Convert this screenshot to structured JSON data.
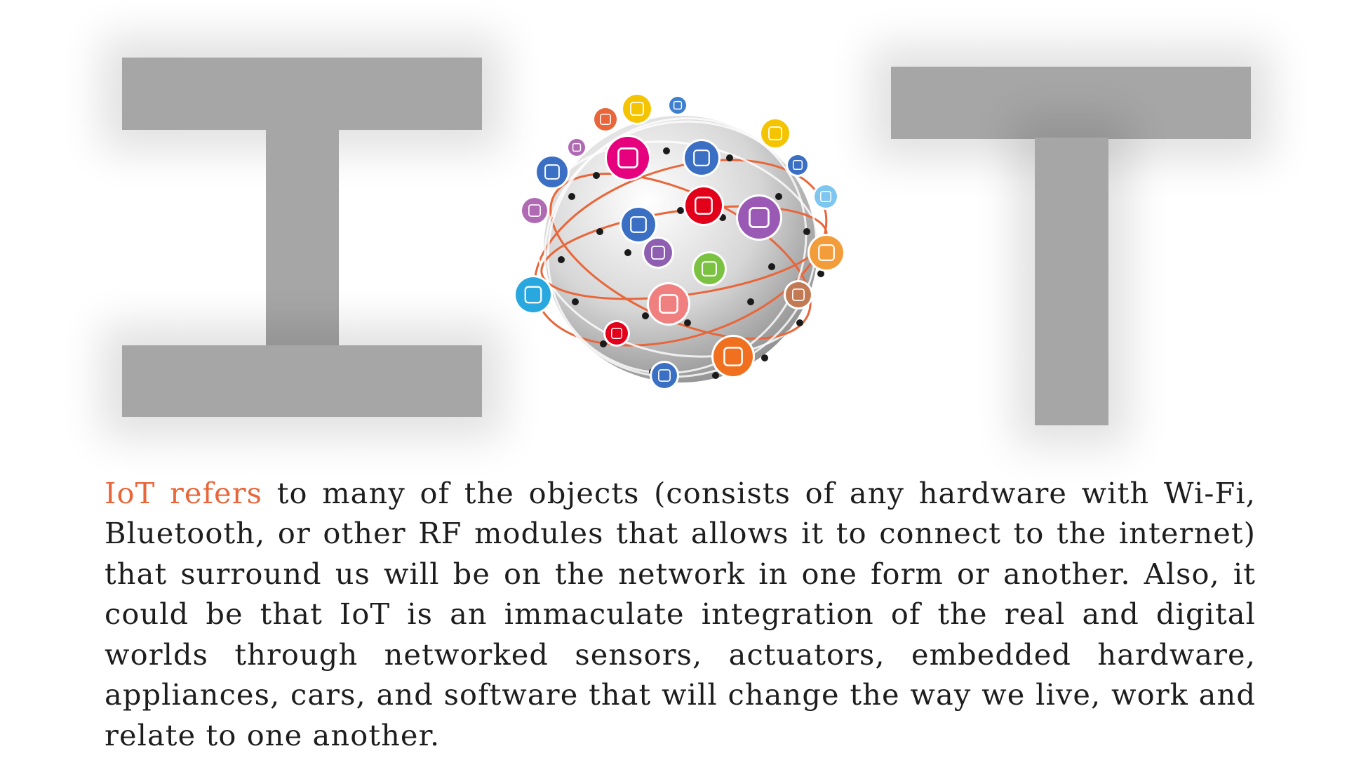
{
  "hero": {
    "letter_left": "I",
    "letter_right": "T",
    "letter_color": "#a6a6a6"
  },
  "globe": {
    "icons": [
      {
        "name": "chip-icon",
        "color": "#f4c400"
      },
      {
        "name": "robot-icon",
        "color": "#3f7fd0"
      },
      {
        "name": "router-icon",
        "color": "#e8663a"
      },
      {
        "name": "satellite-icon",
        "color": "#b06ab3"
      },
      {
        "name": "circuit-search-icon",
        "color": "#e6007e"
      },
      {
        "name": "smart-city-icon",
        "color": "#3a6fc4"
      },
      {
        "name": "chip-card-icon",
        "color": "#f4c400"
      },
      {
        "name": "chat-bubble-icon",
        "color": "#3a6fc4"
      },
      {
        "name": "mail-icon",
        "color": "#3a6fc4"
      },
      {
        "name": "cloud-icon",
        "color": "#7ec6f0"
      },
      {
        "name": "factory-robot-icon",
        "color": "#e3001b"
      },
      {
        "name": "face-recognition-icon",
        "color": "#9b59b6"
      },
      {
        "name": "truck-icon",
        "color": "#b06ab3"
      },
      {
        "name": "network-hub-icon",
        "color": "#3a6fc4"
      },
      {
        "name": "tablet-icon",
        "color": "#f39c3a"
      },
      {
        "name": "wifi-icon",
        "color": "#7cc242"
      },
      {
        "name": "server-icon",
        "color": "#8e5fb0"
      },
      {
        "name": "shield-icon",
        "color": "#c27a55"
      },
      {
        "name": "ship-icon",
        "color": "#29a8e0"
      },
      {
        "name": "people-icon",
        "color": "#f08080"
      },
      {
        "name": "car-icon",
        "color": "#e3001b"
      },
      {
        "name": "drone-icon",
        "color": "#f07020"
      },
      {
        "name": "headset-icon",
        "color": "#3a6fc4"
      }
    ],
    "orbit_color": "#e8663a"
  },
  "description": {
    "highlight": "IoT refers",
    "highlight_color": "#e8663a",
    "body": " to many of the objects (consists of any hardware with Wi-Fi, Bluetooth, or other RF modules that allows it to connect to the internet) that surround us will be on the network in one form or another. Also, it could be that IoT is an immaculate integration of the real and digital worlds through networked sensors, actuators, embedded hardware, appliances, cars, and software that will change the way we live, work and relate to one another."
  }
}
